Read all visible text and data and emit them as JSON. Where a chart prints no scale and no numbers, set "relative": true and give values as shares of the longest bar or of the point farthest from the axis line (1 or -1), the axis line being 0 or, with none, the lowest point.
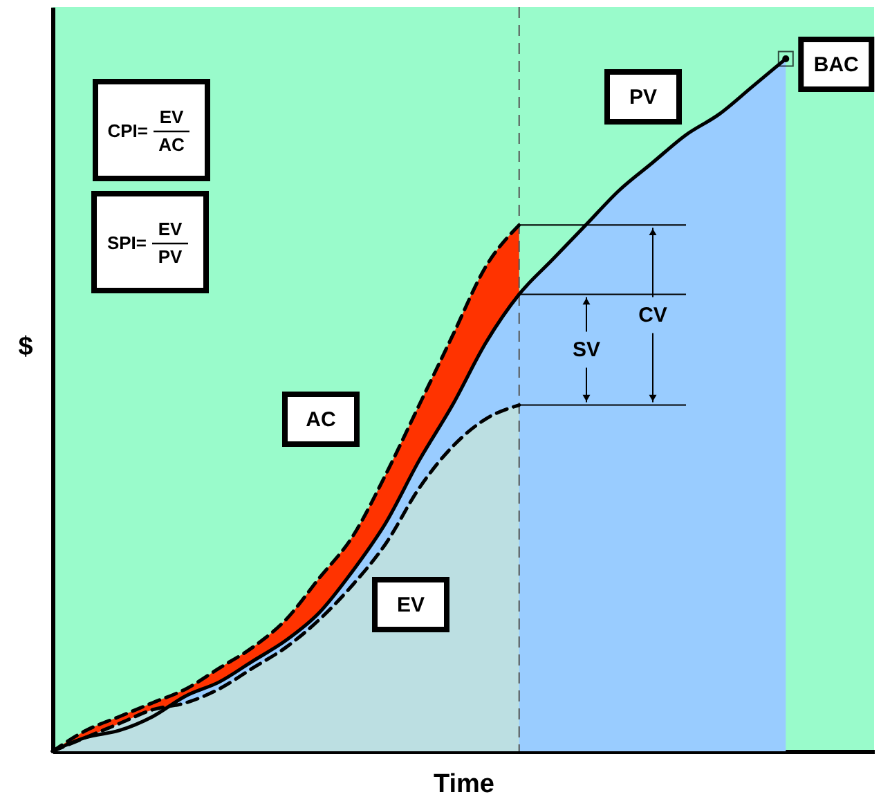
{
  "chart_data": {
    "type": "area",
    "relative": true,
    "xlabel": "Time",
    "ylabel": "$",
    "categories": [
      null,
      null,
      null,
      null,
      null,
      null,
      null,
      null,
      null,
      null,
      null,
      null,
      null,
      null,
      null,
      null,
      null,
      null,
      null,
      null,
      null,
      null,
      null,
      null,
      null
    ],
    "series": [
      {
        "name": "AC",
        "color": "#ff3300",
        "line_style": "dashed",
        "values": [
          0,
          0.03,
          0.05,
          0.07,
          0.09,
          0.12,
          0.15,
          0.19,
          0.25,
          0.31,
          0.4,
          0.5,
          0.6,
          0.7,
          0.76,
          null,
          null,
          null,
          null,
          null,
          null,
          null,
          null,
          null,
          null
        ]
      },
      {
        "name": "PV",
        "color": "#99ccff",
        "line_style": "solid",
        "values": [
          0,
          0.02,
          0.03,
          0.05,
          0.08,
          0.1,
          0.13,
          0.16,
          0.2,
          0.26,
          0.33,
          0.42,
          0.5,
          0.59,
          0.66,
          0.71,
          0.76,
          0.81,
          0.85,
          0.89,
          0.92,
          0.96,
          1,
          null,
          null
        ]
      },
      {
        "name": "EV",
        "color": "#bcdfe2",
        "line_style": "dashed",
        "values": [
          0,
          0.02,
          0.04,
          0.06,
          0.07,
          0.09,
          0.12,
          0.15,
          0.19,
          0.24,
          0.3,
          0.38,
          0.44,
          0.48,
          0.5,
          null,
          null,
          null,
          null,
          null,
          null,
          null,
          null,
          null,
          null
        ]
      }
    ],
    "annotations": [
      "CPI=",
      "EV",
      "AC",
      "SPI=",
      "EV",
      "PV",
      "SV",
      "CV",
      "BAC"
    ]
  }
}
